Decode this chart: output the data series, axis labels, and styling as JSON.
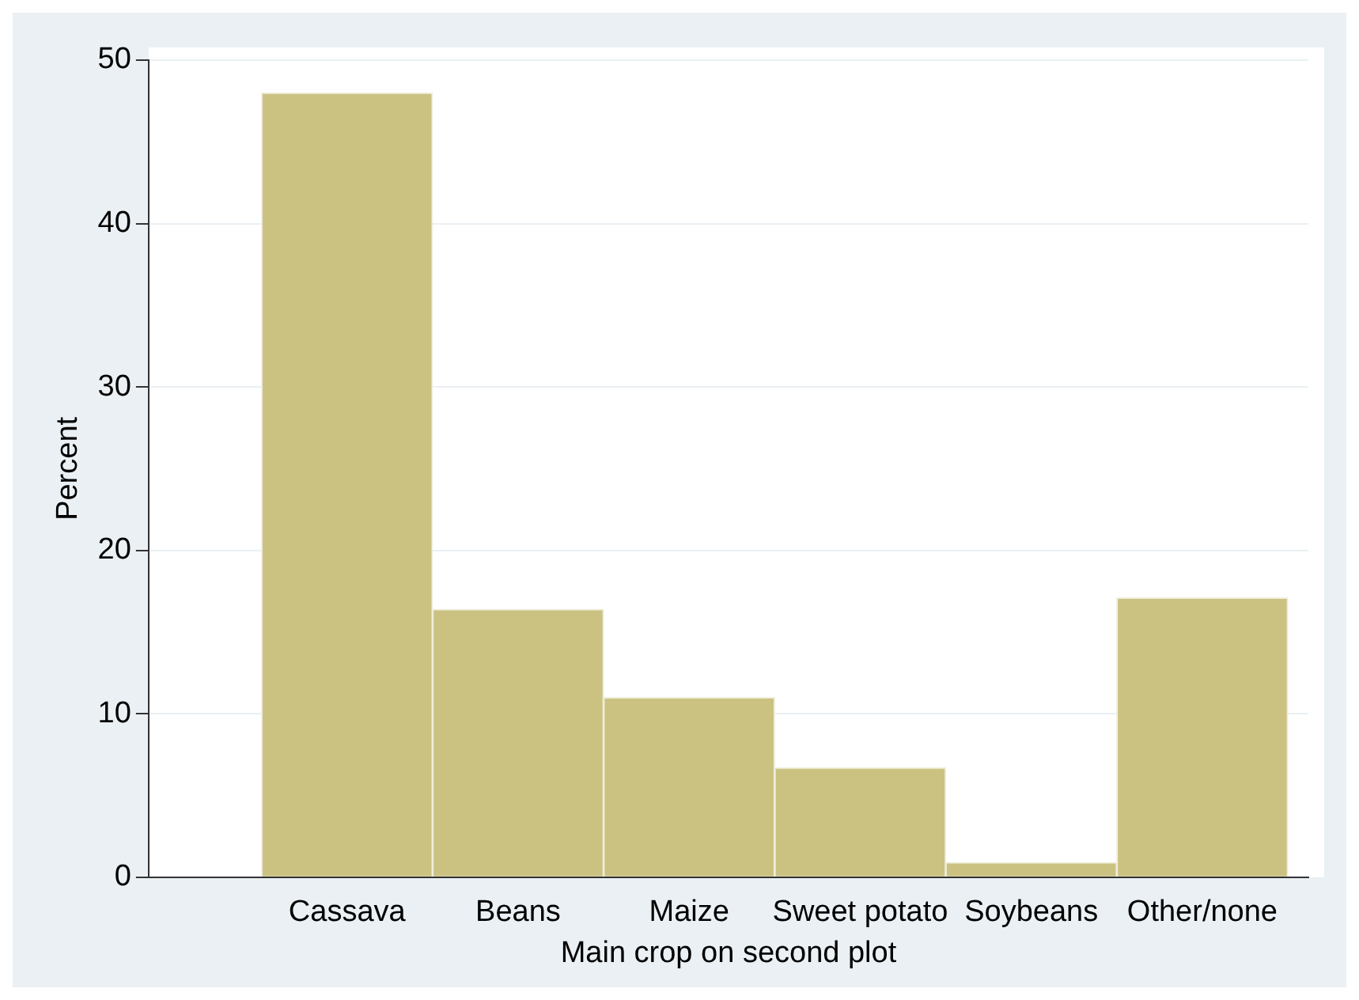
{
  "chart_data": {
    "type": "bar",
    "xlabel": "Main crop on second plot",
    "ylabel": "Percent",
    "categories": [
      "Cassava",
      "Beans",
      "Maize",
      "Sweet potato",
      "Soybeans",
      "Other/none"
    ],
    "values": [
      48.0,
      16.4,
      11.0,
      6.7,
      0.9,
      17.1
    ],
    "color": "#cbc282",
    "ylim": [
      0,
      50
    ],
    "yticks": [
      0,
      10,
      20,
      30,
      40,
      50
    ],
    "grid": "y",
    "legend": false
  }
}
